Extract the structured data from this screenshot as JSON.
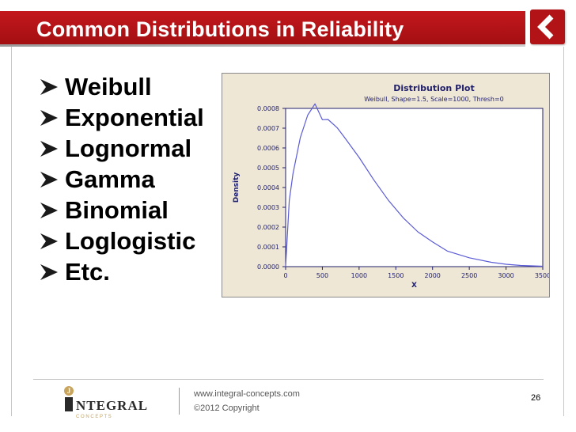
{
  "slide": {
    "title": "Common Distributions in Reliability",
    "bullets": [
      "Weibull",
      "Exponential",
      "Lognormal",
      "Gamma",
      "Binomial",
      "Loglogistic",
      "Etc."
    ]
  },
  "chart_data": {
    "type": "line",
    "title": "Distribution Plot",
    "subtitle": "Weibull, Shape=1.5, Scale=1000, Thresh=0",
    "xlabel": "X",
    "ylabel": "Density",
    "xlim": [
      0,
      3500
    ],
    "ylim": [
      0,
      0.0008
    ],
    "x_ticks": [
      "0",
      "500",
      "1000",
      "1500",
      "2000",
      "2500",
      "3000",
      "3500"
    ],
    "y_ticks": [
      "0.0000",
      "0.0001",
      "0.0002",
      "0.0003",
      "0.0004",
      "0.0005",
      "0.0006",
      "0.0007",
      "0.0008"
    ],
    "grid": false,
    "series": [
      {
        "distribution": "Weibull",
        "shape": 1.5,
        "scale": 1000,
        "threshold": 0,
        "x": [
          0,
          50,
          100,
          200,
          300,
          400,
          500,
          577,
          700,
          800,
          1000,
          1200,
          1400,
          1600,
          1800,
          2000,
          2200,
          2500,
          2800,
          3000,
          3200,
          3500
        ],
        "y": [
          0,
          0.000334,
          0.00047,
          0.000653,
          0.000766,
          0.000823,
          0.000743,
          0.000744,
          0.000703,
          0.000654,
          0.000552,
          0.000439,
          0.000335,
          0.000247,
          0.000176,
          0.000125,
          7.9e-05,
          4.5e-05,
          2.2e-05,
          1.2e-05,
          6e-06,
          2e-06
        ],
        "color": "#5b5bd6"
      }
    ]
  },
  "colors": {
    "title_bar": "#b5151a",
    "plot_background": "#efe7d6",
    "curve": "#5b5bd6",
    "axis": "#1f1f6b"
  },
  "icons": {
    "bullet": "arrow-bullet-icon",
    "back": "back-arrow-icon"
  },
  "footer": {
    "logo_main": "NTEGRAL",
    "logo_letter": "J",
    "logo_sub": "C O N C E P T S",
    "url": "www.integral-concepts.com",
    "copyright": "©2012 Copyright",
    "page_number": "26"
  }
}
